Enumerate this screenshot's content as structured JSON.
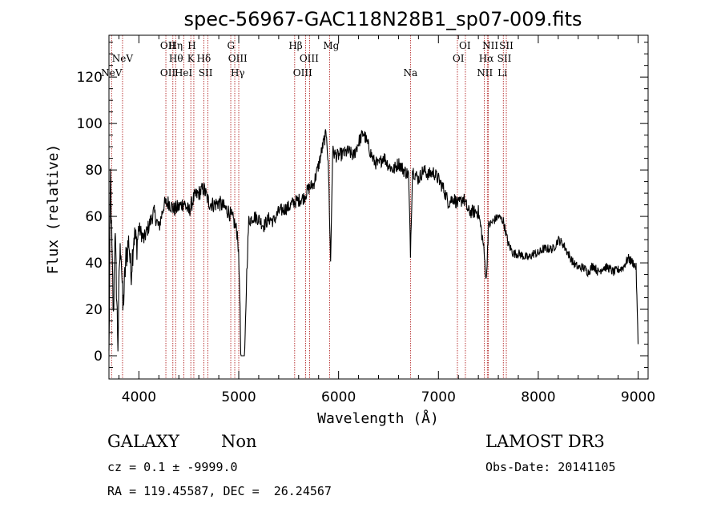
{
  "chart_data": {
    "type": "line",
    "title": "spec-56967-GAC118N28B1_sp07-009.fits",
    "xlabel": "Wavelength (Å)",
    "ylabel": "Flux (relative)",
    "xlim": [
      3700,
      9100
    ],
    "ylim": [
      -10,
      138
    ],
    "xticks": [
      4000,
      5000,
      6000,
      7000,
      8000,
      9000
    ],
    "yticks": [
      0,
      20,
      40,
      60,
      80,
      100,
      120
    ],
    "line_color": "#000000",
    "marker_color": "#b22222",
    "spectrum_anchors": [
      [
        3700,
        0
      ],
      [
        3715,
        78
      ],
      [
        3730,
        45
      ],
      [
        3745,
        15
      ],
      [
        3760,
        55
      ],
      [
        3775,
        30
      ],
      [
        3790,
        5
      ],
      [
        3805,
        40
      ],
      [
        3820,
        48
      ],
      [
        3840,
        20
      ],
      [
        3870,
        42
      ],
      [
        3900,
        50
      ],
      [
        3920,
        35
      ],
      [
        3950,
        52
      ],
      [
        3980,
        48
      ],
      [
        4000,
        55
      ],
      [
        4050,
        50
      ],
      [
        4100,
        56
      ],
      [
        4150,
        62
      ],
      [
        4200,
        55
      ],
      [
        4250,
        65
      ],
      [
        4300,
        66
      ],
      [
        4350,
        63
      ],
      [
        4400,
        64
      ],
      [
        4450,
        66
      ],
      [
        4500,
        62
      ],
      [
        4550,
        68
      ],
      [
        4600,
        70
      ],
      [
        4650,
        72
      ],
      [
        4700,
        66
      ],
      [
        4750,
        65
      ],
      [
        4800,
        66
      ],
      [
        4850,
        64
      ],
      [
        4900,
        62
      ],
      [
        4950,
        58
      ],
      [
        4990,
        52
      ],
      [
        5010,
        28
      ],
      [
        5020,
        0
      ],
      [
        5060,
        0
      ],
      [
        5080,
        36
      ],
      [
        5100,
        58
      ],
      [
        5150,
        60
      ],
      [
        5200,
        59
      ],
      [
        5250,
        56
      ],
      [
        5300,
        59
      ],
      [
        5350,
        58
      ],
      [
        5400,
        62
      ],
      [
        5450,
        63
      ],
      [
        5500,
        64
      ],
      [
        5550,
        66
      ],
      [
        5600,
        67
      ],
      [
        5650,
        68
      ],
      [
        5700,
        72
      ],
      [
        5750,
        74
      ],
      [
        5800,
        82
      ],
      [
        5850,
        92
      ],
      [
        5880,
        96
      ],
      [
        5900,
        78
      ],
      [
        5920,
        40
      ],
      [
        5940,
        88
      ],
      [
        5980,
        86
      ],
      [
        6050,
        87
      ],
      [
        6100,
        88
      ],
      [
        6150,
        86
      ],
      [
        6200,
        92
      ],
      [
        6250,
        96
      ],
      [
        6300,
        90
      ],
      [
        6350,
        84
      ],
      [
        6400,
        82
      ],
      [
        6450,
        86
      ],
      [
        6500,
        82
      ],
      [
        6550,
        80
      ],
      [
        6600,
        83
      ],
      [
        6650,
        80
      ],
      [
        6700,
        78
      ],
      [
        6720,
        45
      ],
      [
        6740,
        80
      ],
      [
        6800,
        76
      ],
      [
        6850,
        80
      ],
      [
        6900,
        78
      ],
      [
        6950,
        79
      ],
      [
        7000,
        76
      ],
      [
        7050,
        72
      ],
      [
        7100,
        66
      ],
      [
        7150,
        68
      ],
      [
        7200,
        65
      ],
      [
        7250,
        68
      ],
      [
        7300,
        62
      ],
      [
        7350,
        62
      ],
      [
        7400,
        62
      ],
      [
        7450,
        48
      ],
      [
        7480,
        32
      ],
      [
        7500,
        56
      ],
      [
        7550,
        58
      ],
      [
        7600,
        60
      ],
      [
        7650,
        58
      ],
      [
        7700,
        48
      ],
      [
        7750,
        44
      ],
      [
        7800,
        44
      ],
      [
        7850,
        43
      ],
      [
        7900,
        42
      ],
      [
        7950,
        44
      ],
      [
        8000,
        44
      ],
      [
        8050,
        46
      ],
      [
        8100,
        46
      ],
      [
        8150,
        46
      ],
      [
        8200,
        50
      ],
      [
        8250,
        48
      ],
      [
        8300,
        44
      ],
      [
        8350,
        40
      ],
      [
        8400,
        38
      ],
      [
        8450,
        38
      ],
      [
        8500,
        36
      ],
      [
        8550,
        39
      ],
      [
        8600,
        36
      ],
      [
        8650,
        38
      ],
      [
        8700,
        38
      ],
      [
        8750,
        36
      ],
      [
        8800,
        37
      ],
      [
        8850,
        38
      ],
      [
        8900,
        42
      ],
      [
        8950,
        40
      ],
      [
        8980,
        38
      ],
      [
        9000,
        5
      ]
    ],
    "emission_lines": [
      {
        "label": "NeV",
        "wavelength": 3726,
        "row": 3
      },
      {
        "label": "NeV",
        "wavelength": 3836,
        "row": 2
      },
      {
        "label": "OII",
        "wavelength": 4290,
        "row": 1
      },
      {
        "label": "OII",
        "wavelength": 4290,
        "row": 3
      },
      {
        "label": "Hη",
        "wavelength": 4368,
        "row": 1
      },
      {
        "label": "Hθ",
        "wavelength": 4372,
        "row": 2
      },
      {
        "label": "HeI",
        "wavelength": 4447,
        "row": 3
      },
      {
        "label": "H",
        "wavelength": 4530,
        "row": 1
      },
      {
        "label": "K",
        "wavelength": 4520,
        "row": 2
      },
      {
        "label": "Hδ",
        "wavelength": 4650,
        "row": 2
      },
      {
        "label": "SII",
        "wavelength": 4668,
        "row": 3
      },
      {
        "label": "G",
        "wavelength": 4922,
        "row": 1
      },
      {
        "label": "OIII",
        "wavelength": 4990,
        "row": 2
      },
      {
        "label": "Hγ",
        "wavelength": 4990,
        "row": 3
      },
      {
        "label": "Hβ",
        "wavelength": 5570,
        "row": 1
      },
      {
        "label": "OIII",
        "wavelength": 5705,
        "row": 2
      },
      {
        "label": "OIII",
        "wavelength": 5640,
        "row": 3
      },
      {
        "label": "Mg",
        "wavelength": 5925,
        "row": 1
      },
      {
        "label": "Na",
        "wavelength": 6720,
        "row": 3
      },
      {
        "label": "OI",
        "wavelength": 7265,
        "row": 1
      },
      {
        "label": "OI",
        "wavelength": 7200,
        "row": 2
      },
      {
        "label": "NII",
        "wavelength": 7520,
        "row": 1
      },
      {
        "label": "Hα",
        "wavelength": 7480,
        "row": 2
      },
      {
        "label": "NII",
        "wavelength": 7465,
        "row": 3
      },
      {
        "label": "SII",
        "wavelength": 7680,
        "row": 1
      },
      {
        "label": "SII",
        "wavelength": 7660,
        "row": 2
      },
      {
        "label": "Li",
        "wavelength": 7640,
        "row": 3
      }
    ],
    "line_wavelengths": [
      3726,
      3836,
      4270,
      4340,
      4368,
      4450,
      4520,
      4550,
      4650,
      4690,
      4920,
      4960,
      5000,
      5560,
      5670,
      5710,
      5910,
      6720,
      7190,
      7270,
      7460,
      7490,
      7500,
      7650,
      7680
    ]
  },
  "info": {
    "object_class": "GALAXY",
    "object_subclass": "Non",
    "survey": "LAMOST DR3",
    "cz": "cz = 0.1 ± -9999.0",
    "obs_date": "Obs-Date: 20141105",
    "coords": "RA = 119.45587, DEC =  26.24567"
  }
}
